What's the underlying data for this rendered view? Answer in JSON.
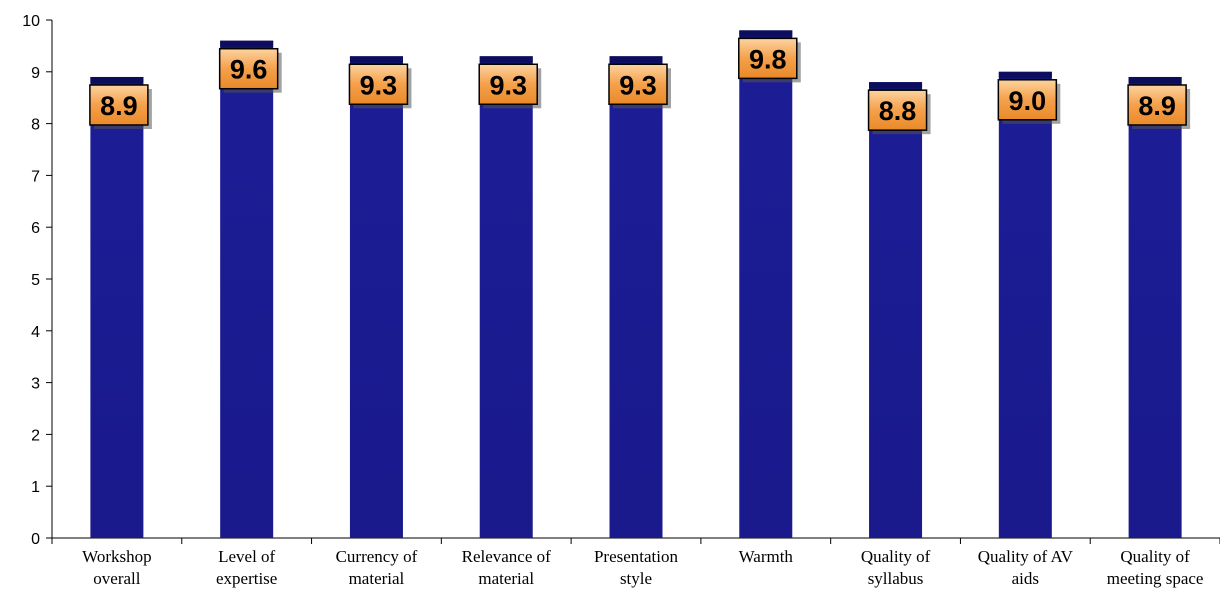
{
  "chart_data": {
    "type": "bar",
    "categories": [
      [
        "Workshop",
        "overall"
      ],
      [
        "Level of",
        "expertise"
      ],
      [
        "Currency of",
        "material"
      ],
      [
        "Relevance of",
        "material"
      ],
      [
        "Presentation",
        "style"
      ],
      [
        "Warmth"
      ],
      [
        "Quality of",
        "syllabus"
      ],
      [
        "Quality of AV",
        "aids"
      ],
      [
        "Quality of",
        "meeting space"
      ]
    ],
    "values": [
      8.9,
      9.6,
      9.3,
      9.3,
      9.3,
      9.8,
      8.8,
      9.0,
      8.9
    ],
    "data_labels": [
      "8.9",
      "9.6",
      "9.3",
      "9.3",
      "9.3",
      "9.8",
      "8.8",
      "9.0",
      "8.9"
    ],
    "ylim": [
      0,
      10
    ],
    "yticks": [
      0,
      1,
      2,
      3,
      4,
      5,
      6,
      7,
      8,
      9,
      10
    ],
    "grid": false,
    "legend": "none",
    "title": "",
    "xlabel": "",
    "ylabel": "",
    "colors": {
      "bar": "#1a1a8c",
      "bar_dark": "#0d0d5e",
      "label_fill": "#f5a04a",
      "label_border": "#000000"
    }
  }
}
